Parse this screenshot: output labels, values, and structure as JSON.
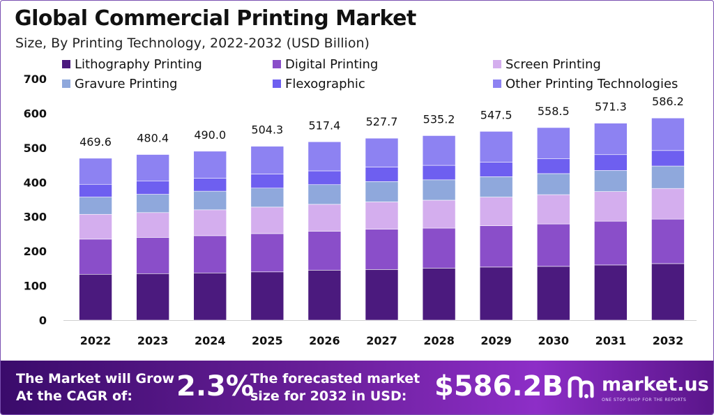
{
  "header": {
    "title": "Global Commercial Printing Market",
    "subtitle": "Size, By Printing Technology, 2022-2032 (USD Billion)"
  },
  "chart_data": {
    "type": "bar",
    "stacked": true,
    "categories": [
      "2022",
      "2023",
      "2024",
      "2025",
      "2026",
      "2027",
      "2028",
      "2029",
      "2030",
      "2031",
      "2032"
    ],
    "ylim": [
      0,
      700
    ],
    "yticks": [
      0,
      100,
      200,
      300,
      400,
      500,
      600,
      700
    ],
    "legend_position": "top",
    "grid": false,
    "totals": [
      469.6,
      480.4,
      490.0,
      504.3,
      517.4,
      527.7,
      535.2,
      547.5,
      558.5,
      571.3,
      586.2
    ],
    "total_labels": [
      "469.6",
      "480.4",
      "490.0",
      "504.3",
      "517.4",
      "527.7",
      "535.2",
      "547.5",
      "558.5",
      "571.3",
      "586.2"
    ],
    "series": [
      {
        "name": "Lithography Printing",
        "color": "#4b1a7e",
        "values": [
          133,
          135,
          137,
          140,
          145,
          147,
          151,
          154,
          156,
          160,
          164
        ]
      },
      {
        "name": "Digital Printing",
        "color": "#8a4ec9",
        "values": [
          102,
          105,
          108,
          111,
          113,
          117,
          116,
          120,
          123,
          127,
          129
        ]
      },
      {
        "name": "Screen Printing",
        "color": "#d4aeee",
        "values": [
          72,
          72,
          75,
          77,
          78,
          79,
          81,
          83,
          85,
          86,
          89
        ]
      },
      {
        "name": "Gravure Printing",
        "color": "#8fa8dc",
        "values": [
          50,
          53,
          54,
          55,
          57,
          59,
          59,
          59,
          61,
          61,
          65
        ]
      },
      {
        "name": "Flexographic",
        "color": "#6e5ff0",
        "values": [
          37,
          39,
          38,
          41,
          40,
          42,
          42,
          42,
          43,
          46,
          45
        ]
      },
      {
        "name": "Other Printing Technologies",
        "color": "#8d82f2",
        "values": [
          75.6,
          76.4,
          78.0,
          80.3,
          84.4,
          83.7,
          86.2,
          89.5,
          90.5,
          91.3,
          94.2
        ]
      }
    ]
  },
  "banner": {
    "cagr_text_line1": "The Market will Grow",
    "cagr_text_line2": "At the CAGR of:",
    "cagr_value": "2.3%",
    "forecast_text_line1": "The forecasted market",
    "forecast_text_line2": "size for 2032 in USD:",
    "forecast_value": "$586.2B",
    "brand": "market.us",
    "brand_tagline": "ONE STOP SHOP FOR THE REPORTS"
  }
}
